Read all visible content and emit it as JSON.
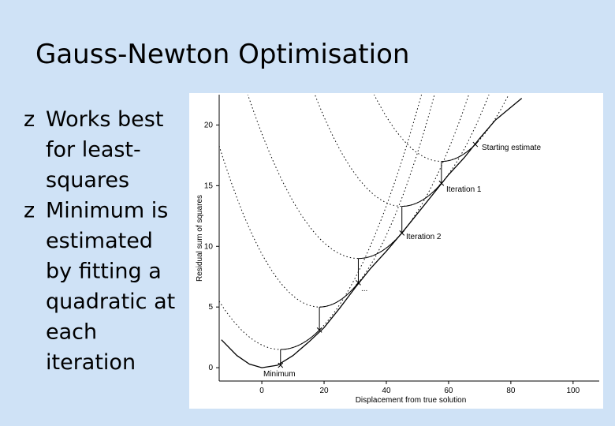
{
  "slide": {
    "title": "Gauss-Newton Optimisation",
    "bullet": "z",
    "bullets": [
      {
        "lines": [
          "Works best",
          "for least-",
          "squares"
        ]
      },
      {
        "lines": [
          "Minimum is",
          "estimated",
          "by fitting a",
          "quadratic at",
          "each",
          "iteration"
        ]
      }
    ]
  },
  "chart_data": {
    "type": "line",
    "x_label": "Displacement from true solution",
    "y_label": "Residual sum of squares",
    "x": [
      -13,
      -8,
      -4,
      0,
      5,
      10,
      15,
      20,
      25,
      30,
      35,
      40,
      45,
      50,
      55,
      60,
      65,
      70,
      75,
      83.5
    ],
    "series": [
      {
        "color": "#000000",
        "values": [
          2.3,
          1.0,
          0.3,
          0,
          0.2,
          1.0,
          2.1,
          3.3,
          4.9,
          6.6,
          8.2,
          9.6,
          11.1,
          12.7,
          14.3,
          15.9,
          17.3,
          18.9,
          20.4,
          22.2
        ]
      }
    ],
    "estimates": {
      "x": [
        68.6,
        57.7,
        45,
        31,
        18.5,
        6
      ],
      "y": [
        18.4,
        15.2,
        11.1,
        7.0,
        3.1,
        0.2
      ]
    },
    "quadratic_minima": [
      17.0,
      13.3,
      9.0,
      5.0,
      1.5
    ],
    "annotations": [
      "Starting estimate",
      "Iteration 1",
      "Iteration 2",
      "...",
      "Minimum"
    ],
    "xlim": [
      -13.7,
      108.4
    ],
    "ylim": [
      -1.1,
      22.5
    ],
    "xticks": [
      0,
      20,
      40,
      60,
      80,
      100
    ],
    "yticks": [
      0,
      5,
      10,
      15,
      20
    ]
  }
}
